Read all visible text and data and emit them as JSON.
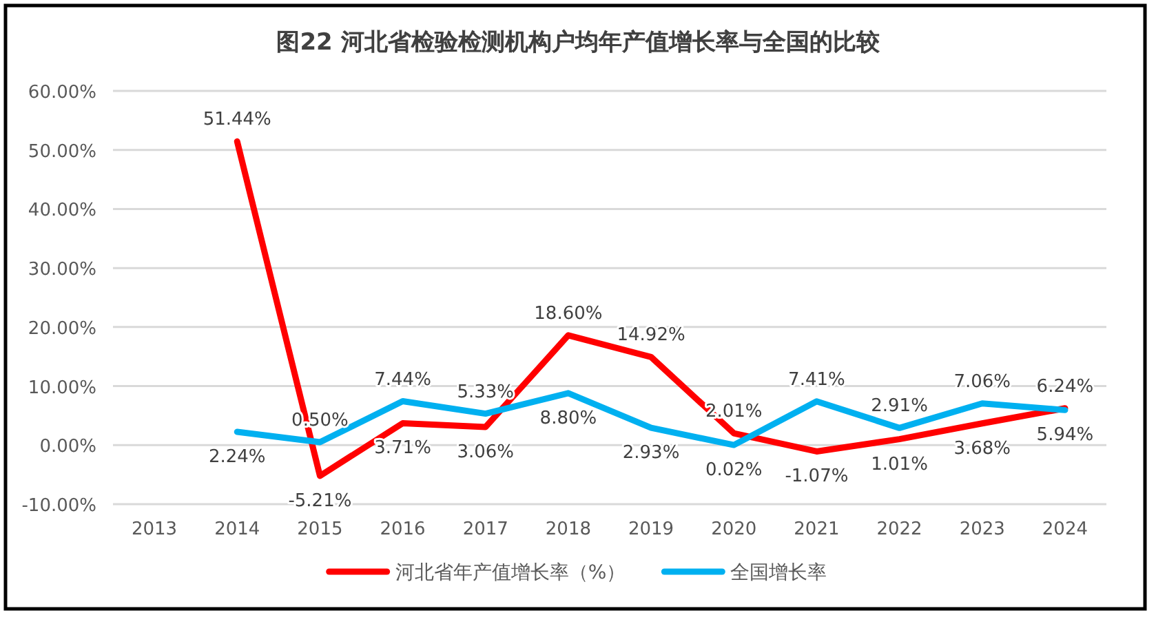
{
  "chart_data": {
    "type": "line",
    "title": "图22  河北省检验检测机构户均年产值增长率与全国的比较",
    "categories": [
      "2013",
      "2014",
      "2015",
      "2016",
      "2017",
      "2018",
      "2019",
      "2020",
      "2021",
      "2022",
      "2023",
      "2024"
    ],
    "series": [
      {
        "name": "河北省年产值增长率（%）",
        "color": "#ff0000",
        "values": [
          null,
          51.44,
          -5.21,
          3.71,
          3.06,
          18.6,
          14.92,
          2.01,
          -1.07,
          1.01,
          3.68,
          6.24
        ],
        "value_labels": [
          null,
          "51.44%",
          "-5.21%",
          "3.71%",
          "3.06%",
          "18.60%",
          "14.92%",
          "2.01%",
          "-1.07%",
          "1.01%",
          "3.68%",
          "6.24%"
        ]
      },
      {
        "name": "全国增长率",
        "color": "#00b0f0",
        "values": [
          null,
          2.24,
          0.5,
          7.44,
          5.33,
          8.8,
          2.93,
          0.02,
          7.41,
          2.91,
          7.06,
          5.94
        ],
        "value_labels": [
          null,
          "2.24%",
          "0.50%",
          "7.44%",
          "5.33%",
          "8.80%",
          "2.93%",
          "0.02%",
          "7.41%",
          "2.91%",
          "7.06%",
          "5.94%"
        ]
      }
    ],
    "ylim": [
      -10,
      60
    ],
    "yticks": [
      {
        "value": -10,
        "label": "-10.00%"
      },
      {
        "value": 0,
        "label": "0.00%"
      },
      {
        "value": 10,
        "label": "10.00%"
      },
      {
        "value": 20,
        "label": "20.00%"
      },
      {
        "value": 30,
        "label": "30.00%"
      },
      {
        "value": 40,
        "label": "40.00%"
      },
      {
        "value": 50,
        "label": "50.00%"
      },
      {
        "value": 60,
        "label": "60.00%"
      }
    ],
    "grid": "y",
    "legend": "bottom",
    "marker": "none",
    "line_style": "solid"
  }
}
